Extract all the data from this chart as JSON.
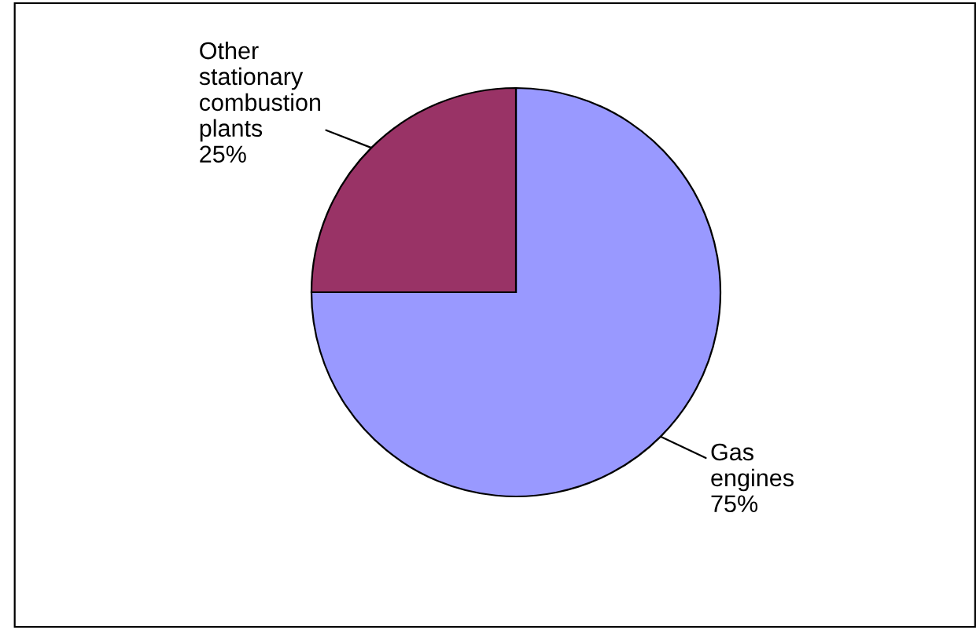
{
  "chart_data": {
    "type": "pie",
    "categories": [
      "Gas engines",
      "Other stationary combustion plants"
    ],
    "values": [
      75,
      25
    ],
    "colors": [
      "#9999ff",
      "#993366"
    ],
    "legend": false,
    "value_labels": [
      "75%",
      "25%"
    ]
  }
}
